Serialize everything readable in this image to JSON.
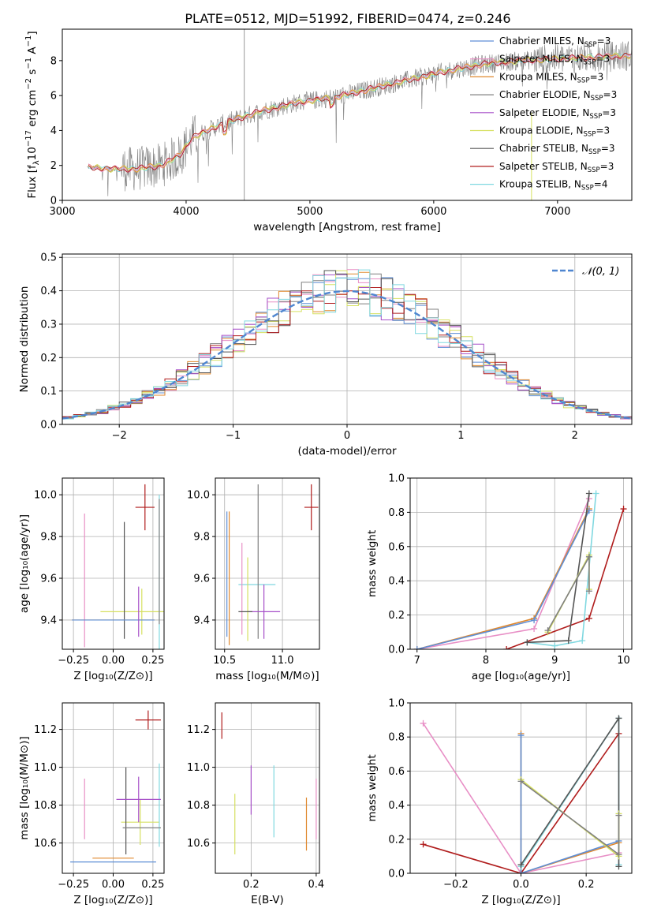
{
  "figure": {
    "title": "PLATE=0512, MJD=51992, FIBERID=0474, z=0.246"
  },
  "colors": {
    "Chabrier MILES": "#5f8fd6",
    "Salpeter MILES": "#e88fc6",
    "Kroupa MILES": "#e0892f",
    "Chabrier ELODIE": "#808080",
    "Salpeter ELODIE": "#a64fc8",
    "Kroupa ELODIE": "#d6e060",
    "Chabrier STELIB": "#555555",
    "Salpeter STELIB": "#b01c1c",
    "Kroupa STELIB": "#80d8e0"
  },
  "chart_data": [
    {
      "id": "spectrum",
      "type": "line",
      "title": "PLATE=0512, MJD=51992, FIBERID=0474, z=0.246",
      "xlabel": "wavelength [Angstrom, rest frame]",
      "ylabel": "Flux [f",
      "ylabel_parts": [
        "Flux [f",
        "λ",
        "10",
        "−17",
        " erg cm",
        "−2",
        " s",
        "−1",
        " A",
        "−1",
        "]"
      ],
      "xlim": [
        3000,
        7600
      ],
      "ylim": [
        0,
        9.8
      ],
      "xticks": [
        3000,
        4000,
        5000,
        6000,
        7000
      ],
      "yticks": [
        0,
        2,
        4,
        6,
        8
      ],
      "grid": false,
      "legend_position": "right",
      "legend": [
        {
          "name": "Chabrier MILES, N",
          "sub": "SSP",
          "n": "=3",
          "color": "#5f8fd6"
        },
        {
          "name": "Salpeter MILES, N",
          "sub": "SSP",
          "n": "=3",
          "color": "#e88fc6"
        },
        {
          "name": "Kroupa MILES, N",
          "sub": "SSP",
          "n": "=3",
          "color": "#e0892f"
        },
        {
          "name": "Chabrier ELODIE, N",
          "sub": "SSP",
          "n": "=3",
          "color": "#808080"
        },
        {
          "name": "Salpeter ELODIE, N",
          "sub": "SSP",
          "n": "=3",
          "color": "#a64fc8"
        },
        {
          "name": "Kroupa ELODIE, N",
          "sub": "SSP",
          "n": "=3",
          "color": "#d6e060"
        },
        {
          "name": "Chabrier STELIB, N",
          "sub": "SSP",
          "n": "=3",
          "color": "#555555"
        },
        {
          "name": "Salpeter STELIB, N",
          "sub": "SSP",
          "n": "=3",
          "color": "#b01c1c"
        },
        {
          "name": "Kroupa STELIB, N",
          "sub": "SSP",
          "n": "=4",
          "color": "#80d8e0"
        }
      ],
      "continuum": [
        [
          3200,
          1.9
        ],
        [
          3400,
          1.8
        ],
        [
          3600,
          1.8
        ],
        [
          3800,
          2.0
        ],
        [
          3950,
          2.6
        ],
        [
          4050,
          3.6
        ],
        [
          4300,
          4.4
        ],
        [
          4600,
          5.1
        ],
        [
          4900,
          5.6
        ],
        [
          5200,
          5.9
        ],
        [
          5500,
          6.4
        ],
        [
          5800,
          6.9
        ],
        [
          6100,
          7.4
        ],
        [
          6400,
          7.8
        ],
        [
          6700,
          8.0
        ],
        [
          7000,
          8.1
        ],
        [
          7300,
          8.2
        ],
        [
          7600,
          8.3
        ]
      ]
    },
    {
      "id": "residuals",
      "type": "line",
      "xlabel": "(data-model)/error",
      "ylabel": "Normed distribution",
      "xlim": [
        -2.5,
        2.5
      ],
      "ylim": [
        0,
        0.51
      ],
      "xticks": [
        -2,
        -1,
        0,
        1,
        2
      ],
      "yticks": [
        0.0,
        0.1,
        0.2,
        0.3,
        0.4,
        0.5
      ],
      "grid": true,
      "legend_position": "top-right",
      "legend": [
        {
          "name": "𝒩(0, 1)",
          "color": "#4f86d0",
          "style": "dashed"
        }
      ],
      "bin_width": 0.1
    },
    {
      "id": "age-vs-Z",
      "type": "scatter",
      "xlabel": "Z [log₁₀(Z/Z⊙)]",
      "ylabel": "age  [log₁₀(age/yr)]",
      "xlim": [
        -0.32,
        0.32
      ],
      "ylim": [
        9.26,
        10.08
      ],
      "xticks": [
        -0.25,
        0.0,
        0.25
      ],
      "yticks": [
        9.4,
        9.6,
        9.8,
        10.0
      ],
      "grid": true,
      "points": [
        {
          "model": "Salpeter STELIB",
          "x": 0.2,
          "y": 9.94,
          "xerr": 0.06,
          "yerr": 0.11
        },
        {
          "model": "Salpeter MILES",
          "x": -0.18,
          "y": 9.59,
          "xerr": 0.0,
          "yerr": 0.32
        },
        {
          "model": "Kroupa ELODIE",
          "x": 0.18,
          "y": 9.44,
          "xerr": 0.26,
          "yerr": 0.11
        },
        {
          "model": "Chabrier STELIB",
          "x": 0.07,
          "y": 9.59,
          "xerr": 0.0,
          "yerr": 0.28
        },
        {
          "model": "Kroupa STELIB",
          "x": 0.29,
          "y": 9.6,
          "xerr": 0.0,
          "yerr": 0.4
        },
        {
          "model": "Kroupa MILES",
          "x": 0.0,
          "y": 9.4,
          "xerr": 0.26,
          "yerr": 0.0
        },
        {
          "model": "Chabrier MILES",
          "x": 0.0,
          "y": 9.4,
          "xerr": 0.26,
          "yerr": 0.0
        },
        {
          "model": "Salpeter ELODIE",
          "x": 0.16,
          "y": 9.44,
          "xerr": 0.0,
          "yerr": 0.12
        },
        {
          "model": "Chabrier ELODIE",
          "x": 0.29,
          "y": 9.68,
          "xerr": 0.0,
          "yerr": 0.3
        }
      ]
    },
    {
      "id": "age-vs-mass",
      "type": "scatter",
      "xlabel": "mass [log₁₀(M/M⊙)]",
      "ylabel": "",
      "xlim": [
        10.42,
        11.32
      ],
      "ylim": [
        9.26,
        10.08
      ],
      "xticks": [
        10.5,
        11.0
      ],
      "yticks": [
        9.4,
        9.6,
        9.8,
        10.0
      ],
      "grid": true,
      "points": [
        {
          "model": "Salpeter STELIB",
          "x": 11.25,
          "y": 9.94,
          "xerr": 0.06,
          "yerr": 0.11
        },
        {
          "model": "Chabrier MILES",
          "x": 10.52,
          "y": 9.62,
          "xerr": 0.0,
          "yerr": 0.3
        },
        {
          "model": "Kroupa MILES",
          "x": 10.54,
          "y": 9.6,
          "xerr": 0.0,
          "yerr": 0.32
        },
        {
          "model": "Kroupa STELIB",
          "x": 10.78,
          "y": 9.57,
          "xerr": 0.16,
          "yerr": 0.0
        },
        {
          "model": "Chabrier ELODIE",
          "x": 10.79,
          "y": 9.68,
          "xerr": 0.0,
          "yerr": 0.37
        },
        {
          "model": "Salpeter ELODIE",
          "x": 10.84,
          "y": 9.44,
          "xerr": 0.14,
          "yerr": 0.13
        },
        {
          "model": "Kroupa ELODIE",
          "x": 10.7,
          "y": 9.5,
          "xerr": 0.0,
          "yerr": 0.2
        },
        {
          "model": "Salpeter MILES",
          "x": 10.65,
          "y": 9.55,
          "xerr": 0.0,
          "yerr": 0.22
        },
        {
          "model": "Chabrier STELIB",
          "x": 10.68,
          "y": 9.44,
          "xerr": 0.06,
          "yerr": 0.0
        }
      ]
    },
    {
      "id": "massweight-vs-age",
      "type": "line",
      "xlabel": "age  [log₁₀(age/yr)]",
      "ylabel": "mass weight",
      "xlim": [
        6.9,
        10.12
      ],
      "ylim": [
        0,
        1.0
      ],
      "xticks": [
        7,
        8,
        9,
        10
      ],
      "yticks": [
        0.0,
        0.2,
        0.4,
        0.6,
        0.8,
        1.0
      ],
      "grid": true,
      "series": [
        {
          "name": "Salpeter MILES",
          "x": [
            7.0,
            8.7,
            9.5
          ],
          "y": [
            0.0,
            0.12,
            0.88
          ]
        },
        {
          "name": "Kroupa MILES",
          "x": [
            7.0,
            8.7,
            9.5
          ],
          "y": [
            0.0,
            0.18,
            0.82
          ]
        },
        {
          "name": "Chabrier MILES",
          "x": [
            7.0,
            8.7,
            9.5
          ],
          "y": [
            0.0,
            0.17,
            0.81
          ]
        },
        {
          "name": "Salpeter STELIB",
          "x": [
            8.3,
            9.5,
            10.0
          ],
          "y": [
            0.0,
            0.18,
            0.82
          ]
        },
        {
          "name": "Kroupa STELIB",
          "x": [
            8.6,
            9.0,
            9.4,
            9.6
          ],
          "y": [
            0.04,
            0.02,
            0.05,
            0.91
          ]
        },
        {
          "name": "Chabrier STELIB",
          "x": [
            8.6,
            9.2,
            9.5
          ],
          "y": [
            0.04,
            0.05,
            0.91
          ]
        },
        {
          "name": "Kroupa ELODIE",
          "x": [
            8.9,
            9.5,
            9.5
          ],
          "y": [
            0.1,
            0.55,
            0.35
          ]
        },
        {
          "name": "Chabrier ELODIE",
          "x": [
            8.9,
            9.5,
            9.5
          ],
          "y": [
            0.11,
            0.54,
            0.34
          ]
        }
      ]
    },
    {
      "id": "mass-vs-Z",
      "type": "scatter",
      "xlabel": "Z [log₁₀(Z/Z⊙)]",
      "ylabel": "mass [log₁₀(M/M⊙)]",
      "xlim": [
        -0.32,
        0.32
      ],
      "ylim": [
        10.44,
        11.34
      ],
      "xticks": [
        -0.25,
        0.0,
        0.25
      ],
      "yticks": [
        10.6,
        10.8,
        11.0,
        11.2
      ],
      "grid": true,
      "points": [
        {
          "model": "Salpeter STELIB",
          "x": 0.22,
          "y": 11.25,
          "xerr": 0.08,
          "yerr": 0.05
        },
        {
          "model": "Salpeter MILES",
          "x": -0.18,
          "y": 10.78,
          "xerr": 0.0,
          "yerr": 0.16
        },
        {
          "model": "Kroupa ELODIE",
          "x": 0.17,
          "y": 10.71,
          "xerr": 0.12,
          "yerr": 0.12
        },
        {
          "model": "Chabrier STELIB",
          "x": 0.08,
          "y": 10.77,
          "xerr": 0.0,
          "yerr": 0.23
        },
        {
          "model": "Kroupa STELIB",
          "x": 0.29,
          "y": 10.8,
          "xerr": 0.0,
          "yerr": 0.22
        },
        {
          "model": "Salpeter ELODIE",
          "x": 0.16,
          "y": 10.83,
          "xerr": 0.14,
          "yerr": 0.12
        },
        {
          "model": "Kroupa MILES",
          "x": 0.0,
          "y": 10.52,
          "xerr": 0.13,
          "yerr": 0.0
        },
        {
          "model": "Chabrier MILES",
          "x": 0.0,
          "y": 10.5,
          "xerr": 0.27,
          "yerr": 0.0
        },
        {
          "model": "Chabrier ELODIE",
          "x": 0.18,
          "y": 10.68,
          "xerr": 0.12,
          "yerr": 0.0
        }
      ]
    },
    {
      "id": "mass-vs-EBV",
      "type": "scatter",
      "xlabel": "E(B-V)",
      "ylabel": "",
      "xlim": [
        0.09,
        0.41
      ],
      "ylim": [
        10.44,
        11.34
      ],
      "xticks": [
        0.2,
        0.4
      ],
      "yticks": [
        10.6,
        10.8,
        11.0,
        11.2
      ],
      "grid": true,
      "points": [
        {
          "model": "Salpeter STELIB",
          "x": 0.11,
          "y": 11.22,
          "xerr": 0.0,
          "yerr": 0.07
        },
        {
          "model": "Kroupa ELODIE",
          "x": 0.15,
          "y": 10.7,
          "xerr": 0.0,
          "yerr": 0.16
        },
        {
          "model": "Salpeter ELODIE",
          "x": 0.2,
          "y": 10.88,
          "xerr": 0.0,
          "yerr": 0.13
        },
        {
          "model": "Kroupa STELIB",
          "x": 0.27,
          "y": 10.82,
          "xerr": 0.0,
          "yerr": 0.19
        },
        {
          "model": "Kroupa MILES",
          "x": 0.37,
          "y": 10.7,
          "xerr": 0.0,
          "yerr": 0.14
        },
        {
          "model": "Salpeter MILES",
          "x": 0.4,
          "y": 10.78,
          "xerr": 0.0,
          "yerr": 0.16
        }
      ]
    },
    {
      "id": "massweight-vs-Z",
      "type": "line",
      "xlabel": "Z [log₁₀(Z/Z⊙)]",
      "ylabel": "mass weight",
      "xlim": [
        -0.34,
        0.34
      ],
      "ylim": [
        0,
        1.0
      ],
      "xticks": [
        -0.2,
        0.0,
        0.2
      ],
      "yticks": [
        0.0,
        0.2,
        0.4,
        0.6,
        0.8,
        1.0
      ],
      "grid": true,
      "series": [
        {
          "name": "Salpeter MILES",
          "x": [
            -0.3,
            0.0,
            0.3
          ],
          "y": [
            0.88,
            0.0,
            0.12
          ]
        },
        {
          "name": "Salpeter STELIB",
          "x": [
            -0.3,
            0.0,
            0.3
          ],
          "y": [
            0.17,
            0.0,
            0.82
          ]
        },
        {
          "name": "Kroupa MILES",
          "x": [
            0.0,
            0.0,
            0.3
          ],
          "y": [
            0.82,
            0.0,
            0.18
          ]
        },
        {
          "name": "Chabrier MILES",
          "x": [
            0.0,
            0.0,
            0.3
          ],
          "y": [
            0.81,
            0.0,
            0.19
          ]
        },
        {
          "name": "Kroupa STELIB",
          "x": [
            0.0,
            0.3,
            0.3
          ],
          "y": [
            0.04,
            0.91,
            0.05
          ]
        },
        {
          "name": "Chabrier STELIB",
          "x": [
            0.0,
            0.3,
            0.3
          ],
          "y": [
            0.05,
            0.91,
            0.04
          ]
        },
        {
          "name": "Kroupa ELODIE",
          "x": [
            0.0,
            0.3,
            0.3
          ],
          "y": [
            0.55,
            0.1,
            0.35
          ]
        },
        {
          "name": "Chabrier ELODIE",
          "x": [
            0.0,
            0.3,
            0.3
          ],
          "y": [
            0.54,
            0.11,
            0.34
          ]
        }
      ]
    }
  ]
}
